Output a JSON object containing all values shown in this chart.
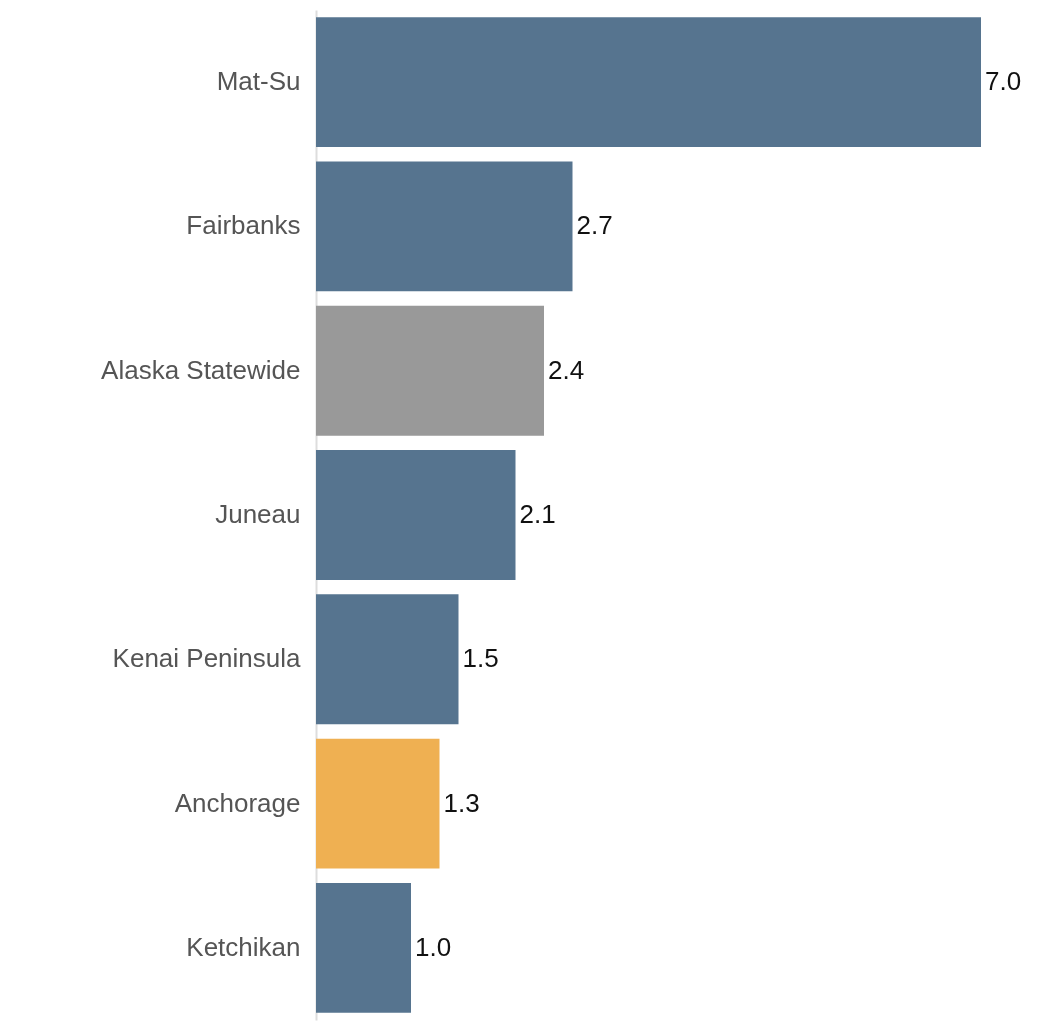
{
  "chart_data": {
    "type": "bar",
    "orientation": "horizontal",
    "categories": [
      "Mat-Su",
      "Fairbanks",
      "Alaska Statewide",
      "Juneau",
      "Kenai Peninsula",
      "Anchorage",
      "Ketchikan"
    ],
    "values": [
      7.0,
      2.7,
      2.4,
      2.1,
      1.5,
      1.3,
      1.0
    ],
    "colors": [
      "#56748f",
      "#56748f",
      "#999999",
      "#56748f",
      "#56748f",
      "#efb052",
      "#56748f"
    ],
    "data_labels": true,
    "value_labels": [
      "7.0",
      "2.7",
      "2.4",
      "2.1",
      "1.5",
      "1.3",
      "1.0"
    ]
  }
}
